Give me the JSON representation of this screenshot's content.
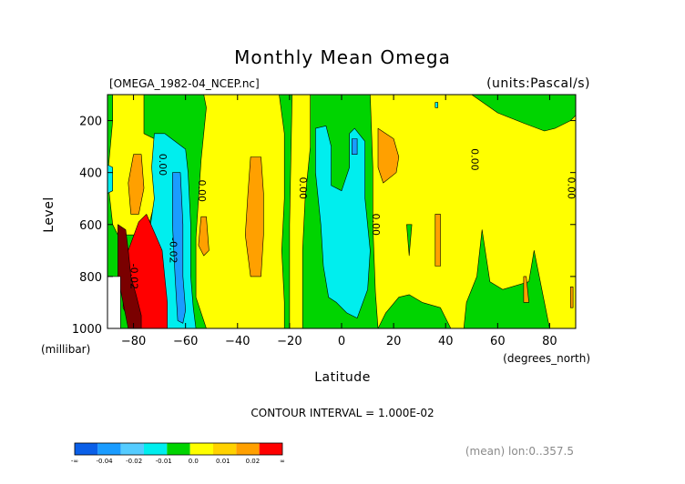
{
  "chart_data": {
    "type": "heatmap",
    "title": "Monthly Mean Omega",
    "file_label": "[OMEGA_1982-04_NCEP.nc]",
    "units_label": "(units:Pascal/s)",
    "xlabel": "Latitude",
    "ylabel": "Level",
    "x_units": "(degrees_north)",
    "y_units": "(millibar)",
    "xlim": [
      -90,
      90
    ],
    "ylim": [
      1000,
      100
    ],
    "x_ticks": [
      -80,
      -60,
      -40,
      -20,
      0,
      20,
      40,
      60,
      80
    ],
    "x_tick_labels": [
      "-80",
      "-60",
      "-40",
      "-20",
      "0",
      "20",
      "40",
      "60",
      "80"
    ],
    "y_ticks": [
      200,
      400,
      600,
      800,
      1000
    ],
    "y_tick_labels": [
      "200",
      "400",
      "600",
      "800",
      "1000"
    ],
    "contour_interval_text": "CONTOUR INTERVAL = 1.000E-02",
    "footer_text": "(mean) lon:0..357.5",
    "contour_labels": [
      {
        "text": "0.00",
        "lat": -69,
        "level": 370
      },
      {
        "text": "0.00",
        "lat": -54,
        "level": 470
      },
      {
        "text": "0.00",
        "lat": -15,
        "level": 460
      },
      {
        "text": "0.00",
        "lat": 13,
        "level": 600
      },
      {
        "text": "0.00",
        "lat": 51,
        "level": 350
      },
      {
        "text": "0.00",
        "lat": 88,
        "level": 460
      },
      {
        "text": "-0.02",
        "lat": -80,
        "level": 800
      },
      {
        "text": "-0.02",
        "lat": -65,
        "level": 700
      }
    ],
    "legend": {
      "colors": [
        "#0a5fe8",
        "#1a9cff",
        "#55ccff",
        "#00eeee",
        "#00d400",
        "#ffff00",
        "#ffd200",
        "#ffa000",
        "#ff0000"
      ],
      "tick_labels": [
        "-∞",
        "-0.04",
        "-0.02",
        "-0.01",
        "0.0",
        "0.01",
        "0.02",
        "∞"
      ]
    },
    "categories_color": {
      "strong_pos": "#7a0000",
      "pos_red": "#ff0000",
      "pos_orange": "#ffa000",
      "pos_yellow": "#ffff00",
      "neutral_green": "#00d400",
      "neg_cyan": "#00eeee",
      "neg_blue": "#1a9cff",
      "missing": "#ffffff"
    },
    "regions": [
      {
        "value": "neutral_green",
        "poly": [
          [
            -90,
            100
          ],
          [
            90,
            100
          ],
          [
            90,
            1000
          ],
          [
            -90,
            1000
          ]
        ]
      },
      {
        "value": "pos_yellow",
        "poly": [
          [
            -88,
            100
          ],
          [
            -76,
            100
          ],
          [
            -76,
            250
          ],
          [
            -70,
            280
          ],
          [
            -69,
            400
          ],
          [
            -72,
            520
          ],
          [
            -74,
            600
          ],
          [
            -78,
            640
          ],
          [
            -86,
            640
          ],
          [
            -88,
            600
          ],
          [
            -90,
            420
          ],
          [
            -88,
            200
          ]
        ]
      },
      {
        "value": "neg_cyan",
        "poly": [
          [
            -90,
            370
          ],
          [
            -88,
            380
          ],
          [
            -88,
            470
          ],
          [
            -90,
            480
          ]
        ]
      },
      {
        "value": "pos_orange",
        "poly": [
          [
            -80,
            330
          ],
          [
            -77,
            330
          ],
          [
            -76,
            460
          ],
          [
            -78,
            560
          ],
          [
            -81,
            560
          ],
          [
            -82,
            440
          ]
        ]
      },
      {
        "value": "pos_yellow",
        "poly": [
          [
            -53,
            100
          ],
          [
            -38,
            100
          ],
          [
            -24,
            100
          ],
          [
            -22,
            250
          ],
          [
            -22,
            500
          ],
          [
            -23,
            700
          ],
          [
            -22,
            900
          ],
          [
            -22,
            1000
          ],
          [
            -42,
            1000
          ],
          [
            -52,
            1000
          ],
          [
            -56,
            880
          ],
          [
            -56,
            650
          ],
          [
            -54,
            350
          ],
          [
            -52,
            150
          ]
        ]
      },
      {
        "value": "pos_orange",
        "poly": [
          [
            -35,
            340
          ],
          [
            -31,
            340
          ],
          [
            -30,
            480
          ],
          [
            -30,
            640
          ],
          [
            -31,
            800
          ],
          [
            -35,
            800
          ],
          [
            -37,
            640
          ],
          [
            -36,
            480
          ]
        ]
      },
      {
        "value": "pos_orange",
        "poly": [
          [
            -54,
            570
          ],
          [
            -52,
            570
          ],
          [
            -51,
            700
          ],
          [
            -53,
            720
          ],
          [
            -55,
            680
          ]
        ]
      },
      {
        "value": "pos_yellow",
        "poly": [
          [
            -19,
            100
          ],
          [
            -12,
            100
          ],
          [
            -12,
            300
          ],
          [
            -14,
            500
          ],
          [
            -15,
            700
          ],
          [
            -15,
            1000
          ],
          [
            -20,
            1000
          ],
          [
            -20,
            600
          ]
        ]
      },
      {
        "value": "neg_cyan",
        "poly": [
          [
            -10,
            230
          ],
          [
            -6,
            220
          ],
          [
            -4,
            300
          ],
          [
            -4,
            450
          ],
          [
            0,
            470
          ],
          [
            3,
            380
          ],
          [
            3,
            250
          ],
          [
            5,
            230
          ],
          [
            9,
            280
          ],
          [
            9,
            500
          ],
          [
            11,
            700
          ],
          [
            10,
            850
          ],
          [
            6,
            960
          ],
          [
            2,
            940
          ],
          [
            -2,
            900
          ],
          [
            -5,
            880
          ],
          [
            -7,
            760
          ],
          [
            -8,
            600
          ],
          [
            -10,
            400
          ]
        ]
      },
      {
        "value": "neg_blue",
        "poly": [
          [
            4,
            270
          ],
          [
            6,
            270
          ],
          [
            6,
            330
          ],
          [
            4,
            330
          ]
        ]
      },
      {
        "value": "pos_yellow",
        "poly": [
          [
            11,
            100
          ],
          [
            50,
            100
          ],
          [
            60,
            170
          ],
          [
            70,
            210
          ],
          [
            78,
            240
          ],
          [
            82,
            230
          ],
          [
            88,
            200
          ],
          [
            90,
            180
          ],
          [
            90,
            1000
          ],
          [
            80,
            1000
          ],
          [
            78,
            900
          ],
          [
            74,
            700
          ],
          [
            72,
            820
          ],
          [
            62,
            850
          ],
          [
            57,
            820
          ],
          [
            54,
            620
          ],
          [
            52,
            800
          ],
          [
            48,
            900
          ],
          [
            47,
            1000
          ],
          [
            42,
            1000
          ],
          [
            38,
            920
          ],
          [
            31,
            900
          ],
          [
            26,
            870
          ],
          [
            22,
            880
          ],
          [
            17,
            940
          ],
          [
            14,
            1000
          ],
          [
            13,
            860
          ],
          [
            12,
            600
          ],
          [
            12,
            380
          ]
        ]
      },
      {
        "value": "neg_cyan",
        "poly": [
          [
            36,
            130
          ],
          [
            37,
            130
          ],
          [
            37,
            150
          ],
          [
            36,
            150
          ]
        ]
      },
      {
        "value": "pos_orange",
        "poly": [
          [
            14,
            230
          ],
          [
            20,
            270
          ],
          [
            22,
            340
          ],
          [
            21,
            400
          ],
          [
            16,
            440
          ],
          [
            14,
            380
          ]
        ]
      },
      {
        "value": "pos_orange",
        "poly": [
          [
            36,
            560
          ],
          [
            38,
            560
          ],
          [
            38,
            760
          ],
          [
            36,
            760
          ]
        ]
      },
      {
        "value": "neutral_green",
        "poly": [
          [
            25,
            600
          ],
          [
            27,
            600
          ],
          [
            26,
            720
          ]
        ]
      },
      {
        "value": "pos_orange",
        "poly": [
          [
            70,
            800
          ],
          [
            71,
            800
          ],
          [
            72,
            900
          ],
          [
            70,
            900
          ]
        ]
      },
      {
        "value": "pos_orange",
        "poly": [
          [
            88,
            840
          ],
          [
            89,
            840
          ],
          [
            89,
            920
          ],
          [
            88,
            920
          ]
        ]
      },
      {
        "value": "neg_cyan",
        "poly": [
          [
            -72,
            250
          ],
          [
            -68,
            250
          ],
          [
            -64,
            280
          ],
          [
            -60,
            310
          ],
          [
            -59,
            400
          ],
          [
            -58,
            600
          ],
          [
            -58,
            800
          ],
          [
            -57,
            920
          ],
          [
            -56,
            1000
          ],
          [
            -68,
            1000
          ],
          [
            -68,
            900
          ],
          [
            -72,
            800
          ],
          [
            -74,
            640
          ],
          [
            -72,
            500
          ],
          [
            -73,
            380
          ]
        ]
      },
      {
        "value": "neg_blue",
        "poly": [
          [
            -65,
            400
          ],
          [
            -62,
            400
          ],
          [
            -61,
            600
          ],
          [
            -61,
            800
          ],
          [
            -60,
            930
          ],
          [
            -61,
            980
          ],
          [
            -63,
            970
          ],
          [
            -64,
            800
          ],
          [
            -65,
            600
          ]
        ]
      },
      {
        "value": "pos_red",
        "poly": [
          [
            -78,
            590
          ],
          [
            -75,
            560
          ],
          [
            -72,
            630
          ],
          [
            -69,
            700
          ],
          [
            -68,
            800
          ],
          [
            -67,
            900
          ],
          [
            -67,
            1000
          ],
          [
            -80,
            1000
          ],
          [
            -84,
            920
          ],
          [
            -84,
            800
          ],
          [
            -82,
            700
          ]
        ]
      },
      {
        "value": "strong_pos",
        "poly": [
          [
            -86,
            600
          ],
          [
            -83,
            620
          ],
          [
            -82,
            700
          ],
          [
            -81,
            800
          ],
          [
            -79,
            870
          ],
          [
            -77,
            950
          ],
          [
            -77,
            1000
          ],
          [
            -82,
            1000
          ],
          [
            -84,
            900
          ],
          [
            -86,
            800
          ],
          [
            -86,
            700
          ]
        ]
      },
      {
        "value": "missing",
        "poly": [
          [
            -90,
            800
          ],
          [
            -85,
            800
          ],
          [
            -85,
            1000
          ],
          [
            -90,
            1000
          ]
        ]
      }
    ]
  }
}
